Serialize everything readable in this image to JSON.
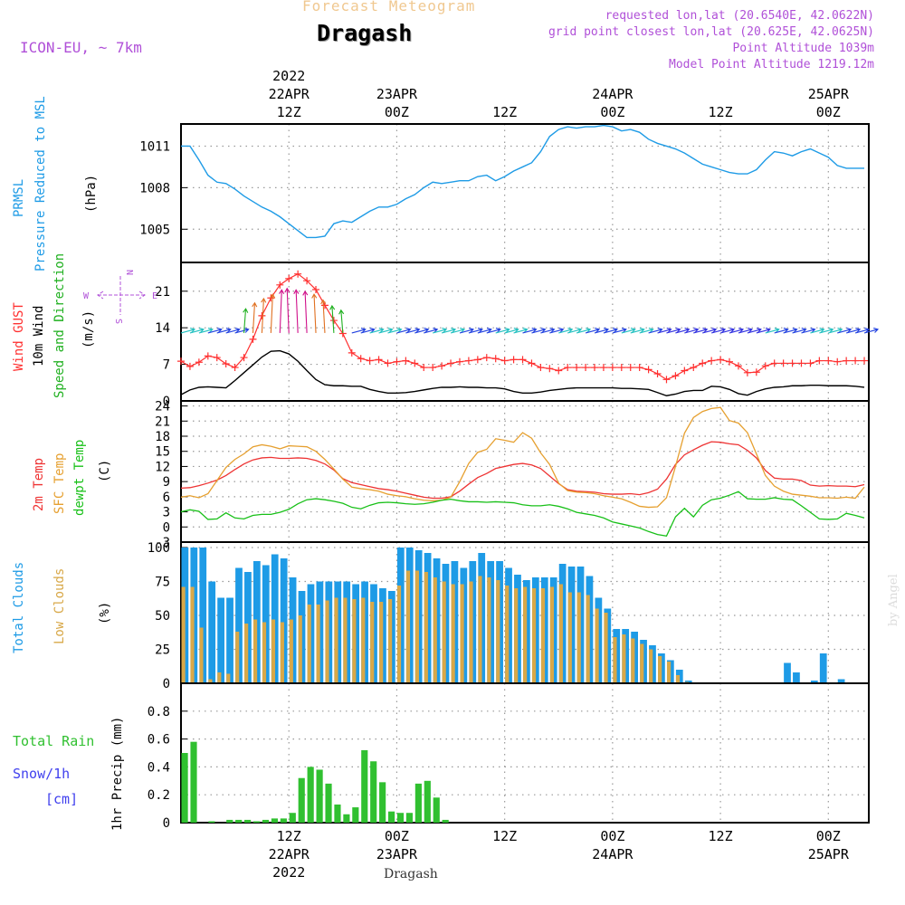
{
  "header": {
    "suptitle": "Forecast Meteogram",
    "location": "Dragash",
    "model": "ICON-EU, ~ 7km",
    "requested": "requested lon,lat (20.6540E, 42.0622N)",
    "gridpoint": "grid point closest lon,lat (20.625E, 42.0625N)",
    "point_alt": "Point Altitude 1039m",
    "model_alt": "Model Point Altitude 1219.12m",
    "credit": "by Angel",
    "bottom_label": "Dragash"
  },
  "colors": {
    "pressure": "#1e9be6",
    "gust": "#ff3030",
    "wind": "#000000",
    "t2m": "#ee3333",
    "sfc": "#e6a030",
    "dewpt": "#18c018",
    "total_cloud": "#1e9be6",
    "low_cloud": "#d8a848",
    "rain": "#30c030",
    "snow": "#4040ee",
    "header_purple": "#b050d8",
    "suptitle": "#f0c890"
  },
  "time_axis": {
    "top_ticks": [
      {
        "x": 12,
        "lines": [
          "2022",
          "22APR",
          "12Z"
        ]
      },
      {
        "x": 24,
        "lines": [
          "23APR",
          "00Z"
        ]
      },
      {
        "x": 36,
        "lines": [
          "12Z"
        ]
      },
      {
        "x": 48,
        "lines": [
          "24APR",
          "00Z"
        ]
      },
      {
        "x": 60,
        "lines": [
          "12Z"
        ]
      },
      {
        "x": 72,
        "lines": [
          "25APR",
          "00Z"
        ]
      }
    ],
    "bottom_ticks": [
      {
        "x": 12,
        "lines": [
          "12Z",
          "22APR",
          "2022"
        ]
      },
      {
        "x": 24,
        "lines": [
          "00Z",
          "23APR"
        ]
      },
      {
        "x": 36,
        "lines": [
          "12Z"
        ]
      },
      {
        "x": 48,
        "lines": [
          "00Z",
          "24APR"
        ]
      },
      {
        "x": 60,
        "lines": [
          "12Z"
        ]
      },
      {
        "x": 72,
        "lines": [
          "00Z",
          "25APR"
        ]
      }
    ]
  },
  "chart_data": [
    {
      "type": "line",
      "panel": "pressure",
      "ylabel_lines": [
        "PRMSL",
        "Pressure Reduced to MSL"
      ],
      "unit": "(hPa)",
      "yticks": [
        1005,
        1008,
        1011
      ],
      "ylim": [
        1002.6,
        1012.6
      ],
      "xlim": [
        0,
        76.5
      ],
      "grid": true,
      "x": [
        0,
        1,
        2,
        3,
        4,
        5,
        6,
        7,
        8,
        9,
        10,
        11,
        12,
        13,
        14,
        15,
        16,
        17,
        18,
        19,
        20,
        21,
        22,
        23,
        24,
        25,
        26,
        27,
        28,
        29,
        30,
        31,
        32,
        33,
        34,
        35,
        36,
        37,
        38,
        39,
        40,
        41,
        42,
        43,
        44,
        45,
        46,
        47,
        48,
        49,
        50,
        51,
        52,
        53,
        54,
        55,
        56,
        57,
        58,
        59,
        60,
        61,
        62,
        63,
        64,
        65,
        66,
        67,
        68,
        69,
        70,
        71,
        72,
        73,
        74,
        75,
        76
      ],
      "series": [
        {
          "values": [
            1011.0,
            1011.0,
            1010.0,
            1008.9,
            1008.4,
            1008.3,
            1007.9,
            1007.4,
            1007.0,
            1006.6,
            1006.3,
            1005.9,
            1005.4,
            1004.9,
            1004.4,
            1004.4,
            1004.5,
            1005.4,
            1005.6,
            1005.5,
            1005.9,
            1006.3,
            1006.6,
            1006.6,
            1006.8,
            1007.2,
            1007.5,
            1008.0,
            1008.4,
            1008.3,
            1008.4,
            1008.5,
            1008.5,
            1008.8,
            1008.9,
            1008.5,
            1008.8,
            1009.2,
            1009.5,
            1009.8,
            1010.6,
            1011.7,
            1012.2,
            1012.4,
            1012.3,
            1012.4,
            1012.4,
            1012.5,
            1012.4,
            1012.1,
            1012.2,
            1012.0,
            1011.5,
            1011.2,
            1011.0,
            1010.8,
            1010.5,
            1010.1,
            1009.7,
            1009.5,
            1009.3,
            1009.1,
            1009.0,
            1009.0,
            1009.3,
            1010.0,
            1010.6,
            1010.5,
            1010.3,
            1010.6,
            1010.8,
            1010.5,
            1010.2,
            1009.6,
            1009.4,
            1009.4,
            1009.4
          ]
        }
      ]
    },
    {
      "type": "line",
      "panel": "wind",
      "ylabel_lines": [
        "Wind GUST",
        "10m Wind",
        "Speed and Direction"
      ],
      "unit": "(m/s)",
      "yticks": [
        0,
        7,
        14,
        21
      ],
      "ylim": [
        0,
        26.5
      ],
      "compass": [
        "N",
        "S",
        "W",
        "E"
      ],
      "grid": true,
      "series": [
        {
          "name": "Wind GUST",
          "values": [
            7.6,
            6.6,
            7.4,
            8.6,
            8.3,
            7.1,
            6.4,
            8.3,
            11.8,
            16.3,
            19.7,
            22.2,
            23.4,
            24.3,
            23.0,
            21.3,
            18.3,
            15.4,
            12.9,
            9.2,
            8.1,
            7.7,
            7.9,
            7.2,
            7.5,
            7.7,
            7.2,
            6.4,
            6.4,
            6.7,
            7.2,
            7.5,
            7.7,
            7.9,
            8.3,
            8.1,
            7.7,
            7.9,
            7.9,
            7.2,
            6.4,
            6.2,
            5.8,
            6.4,
            6.4,
            6.4,
            6.4,
            6.4,
            6.4,
            6.4,
            6.4,
            6.4,
            6.0,
            5.2,
            4.1,
            4.8,
            5.8,
            6.4,
            7.2,
            7.7,
            7.9,
            7.5,
            6.7,
            5.4,
            5.5,
            6.7,
            7.2,
            7.2,
            7.2,
            7.2,
            7.2,
            7.7,
            7.7,
            7.5,
            7.7,
            7.7,
            7.7
          ]
        },
        {
          "name": "10m Wind",
          "values": [
            1.2,
            2.1,
            2.6,
            2.7,
            2.6,
            2.5,
            3.9,
            5.4,
            6.9,
            8.4,
            9.5,
            9.6,
            9.0,
            7.6,
            5.8,
            4.1,
            3.1,
            2.9,
            2.9,
            2.8,
            2.8,
            2.2,
            1.8,
            1.5,
            1.5,
            1.6,
            1.8,
            2.1,
            2.4,
            2.6,
            2.6,
            2.7,
            2.6,
            2.6,
            2.5,
            2.5,
            2.3,
            1.8,
            1.5,
            1.5,
            1.7,
            2.0,
            2.2,
            2.4,
            2.5,
            2.5,
            2.5,
            2.5,
            2.5,
            2.4,
            2.4,
            2.3,
            2.2,
            1.6,
            1.0,
            1.3,
            1.8,
            2.0,
            2.0,
            2.8,
            2.7,
            2.2,
            1.4,
            1.1,
            1.8,
            2.3,
            2.6,
            2.7,
            2.9,
            2.9,
            3.0,
            3.0,
            2.9,
            2.9,
            2.9,
            2.8,
            2.6
          ]
        },
        {
          "name": "Speed and Direction",
          "type": "vectors",
          "values": [
            6,
            6,
            6,
            6,
            6,
            6,
            6,
            8,
            12,
            15,
            18,
            21,
            22,
            21,
            20,
            18,
            14,
            10,
            7,
            6,
            6,
            5,
            5,
            5,
            5,
            5,
            5,
            5,
            5,
            5,
            5,
            5,
            5,
            5,
            5,
            5,
            5,
            5,
            5,
            5,
            5,
            5,
            5,
            5,
            5,
            5,
            5,
            5,
            5,
            5,
            5,
            5,
            5,
            4,
            4,
            4,
            4,
            4,
            4,
            4,
            4,
            4,
            4,
            4,
            4,
            5,
            5,
            5,
            5,
            5,
            5,
            5,
            5,
            5,
            5,
            5,
            5
          ]
        }
      ]
    },
    {
      "type": "line",
      "panel": "temperature",
      "ylabel_lines": [
        "2m Temp",
        "SFC Temp",
        "dewpt Temp"
      ],
      "unit": "(C)",
      "yticks": [
        -3,
        0,
        3,
        6,
        9,
        12,
        15,
        18,
        21,
        24
      ],
      "ylim": [
        -3,
        25
      ],
      "grid": true,
      "series": [
        {
          "name": "2m Temp",
          "values": [
            7.7,
            7.8,
            8.2,
            8.7,
            9.3,
            10.2,
            11.4,
            12.5,
            13.3,
            13.7,
            13.8,
            13.6,
            13.6,
            13.7,
            13.6,
            13.2,
            12.5,
            11.3,
            9.6,
            8.8,
            8.4,
            8.0,
            7.6,
            7.4,
            7.1,
            6.7,
            6.3,
            5.9,
            5.7,
            5.7,
            6.0,
            7.1,
            8.5,
            9.8,
            10.6,
            11.6,
            12.0,
            12.4,
            12.6,
            12.3,
            11.6,
            10.1,
            8.6,
            7.4,
            7.1,
            7.0,
            6.9,
            6.6,
            6.5,
            6.5,
            6.6,
            6.4,
            6.8,
            7.5,
            9.5,
            12.4,
            14.3,
            15.3,
            16.2,
            16.9,
            16.8,
            16.5,
            16.3,
            15.2,
            13.7,
            11.2,
            9.7,
            9.5,
            9.5,
            9.2,
            8.3,
            8.1,
            8.2,
            8.1,
            8.1,
            8.0,
            8.4
          ]
        },
        {
          "name": "SFC Temp",
          "values": [
            5.9,
            6.2,
            5.8,
            6.6,
            9.2,
            11.8,
            13.4,
            14.5,
            15.9,
            16.3,
            16.0,
            15.5,
            16.1,
            16.0,
            15.9,
            15.0,
            13.4,
            11.5,
            9.5,
            7.9,
            7.6,
            7.4,
            7.1,
            6.5,
            6.2,
            6.0,
            5.6,
            5.3,
            5.2,
            5.3,
            5.9,
            9.0,
            12.6,
            14.8,
            15.4,
            17.5,
            17.2,
            16.8,
            18.7,
            17.6,
            14.7,
            12.4,
            8.7,
            7.2,
            6.9,
            6.8,
            6.6,
            6.2,
            5.9,
            5.6,
            4.9,
            4.1,
            3.9,
            4.0,
            5.8,
            12.0,
            18.6,
            21.7,
            22.9,
            23.5,
            23.7,
            21.1,
            20.6,
            18.7,
            14.5,
            10.2,
            8.1,
            7.1,
            6.5,
            6.3,
            6.1,
            5.8,
            5.8,
            5.7,
            5.9,
            5.7,
            7.9
          ]
        },
        {
          "name": "dewpt Temp",
          "values": [
            3.0,
            3.4,
            3.1,
            1.5,
            1.6,
            2.8,
            1.8,
            1.6,
            2.3,
            2.5,
            2.5,
            2.9,
            3.5,
            4.6,
            5.4,
            5.6,
            5.4,
            5.1,
            4.7,
            3.9,
            3.6,
            4.3,
            4.8,
            4.9,
            4.8,
            4.6,
            4.5,
            4.6,
            4.9,
            5.3,
            5.5,
            5.2,
            5.0,
            5.0,
            4.9,
            5.0,
            4.9,
            4.8,
            4.4,
            4.2,
            4.2,
            4.4,
            4.1,
            3.6,
            2.9,
            2.6,
            2.3,
            1.8,
            1.0,
            0.6,
            0.2,
            -0.2,
            -0.9,
            -1.5,
            -1.8,
            2.0,
            3.7,
            2.0,
            4.3,
            5.4,
            5.7,
            6.3,
            7.0,
            5.6,
            5.5,
            5.5,
            5.8,
            5.5,
            5.4,
            4.2,
            2.9,
            1.6,
            1.5,
            1.6,
            2.7,
            2.3,
            1.8
          ]
        }
      ]
    },
    {
      "type": "bar",
      "panel": "clouds",
      "ylabel_lines": [
        "Total Clouds",
        "Low Clouds"
      ],
      "unit": "(%)",
      "yticks": [
        0,
        25,
        50,
        75,
        100
      ],
      "ylim": [
        0,
        104
      ],
      "grid": true,
      "series": [
        {
          "name": "Total Clouds",
          "values": [
            100,
            100,
            100,
            75,
            63,
            63,
            85,
            82,
            90,
            87,
            95,
            92,
            78,
            68,
            73,
            75,
            75,
            75,
            75,
            73,
            75,
            73,
            70,
            68,
            100,
            100,
            98,
            96,
            92,
            88,
            90,
            85,
            90,
            96,
            90,
            90,
            85,
            80,
            76,
            78,
            78,
            78,
            88,
            86,
            86,
            79,
            63,
            55,
            40,
            40,
            38,
            32,
            28,
            22,
            17,
            10,
            2,
            0,
            0,
            0,
            0,
            0,
            0,
            0,
            0,
            0,
            0,
            15,
            8,
            0,
            2,
            22,
            0,
            3,
            0,
            0,
            0
          ]
        },
        {
          "name": "Low Clouds",
          "values": [
            71,
            71,
            41,
            3,
            8,
            7,
            38,
            44,
            47,
            45,
            47,
            45,
            47,
            50,
            58,
            58,
            61,
            63,
            63,
            62,
            63,
            60,
            60,
            62,
            72,
            83,
            83,
            82,
            78,
            75,
            73,
            73,
            75,
            79,
            78,
            76,
            72,
            70,
            71,
            70,
            70,
            71,
            73,
            67,
            67,
            65,
            55,
            52,
            34,
            36,
            33,
            29,
            25,
            20,
            16,
            6,
            1,
            0,
            0,
            0,
            0,
            0,
            0,
            0,
            0,
            0,
            0,
            0,
            0,
            0,
            0,
            0,
            0,
            0,
            0,
            0,
            0
          ]
        }
      ]
    },
    {
      "type": "bar",
      "panel": "precip",
      "ylabel_lines": [
        "Total Rain",
        "Snow/1h",
        "[cm]"
      ],
      "unit": "1hr Precip (mm)",
      "yticks": [
        0,
        0.2,
        0.4,
        0.6,
        0.8
      ],
      "ytick_labels": [
        "0",
        "0.2",
        "0.4",
        "0.6",
        "0.8"
      ],
      "ylim": [
        0,
        1.0
      ],
      "grid": true,
      "series": [
        {
          "name": "Total Rain",
          "values": [
            0.5,
            0.58,
            0,
            0.01,
            0,
            0.02,
            0.02,
            0.02,
            0.01,
            0.02,
            0.03,
            0.03,
            0.07,
            0.32,
            0.4,
            0.38,
            0.28,
            0.13,
            0.06,
            0.11,
            0.52,
            0.44,
            0.29,
            0.08,
            0.07,
            0.07,
            0.28,
            0.3,
            0.18,
            0.02,
            0,
            0,
            0,
            0,
            0,
            0,
            0,
            0,
            0,
            0,
            0,
            0,
            0,
            0,
            0,
            0,
            0,
            0,
            0,
            0,
            0,
            0,
            0,
            0,
            0,
            0,
            0,
            0,
            0,
            0,
            0,
            0,
            0,
            0,
            0,
            0,
            0,
            0,
            0,
            0,
            0,
            0,
            0,
            0,
            0,
            0,
            0
          ]
        }
      ]
    }
  ]
}
